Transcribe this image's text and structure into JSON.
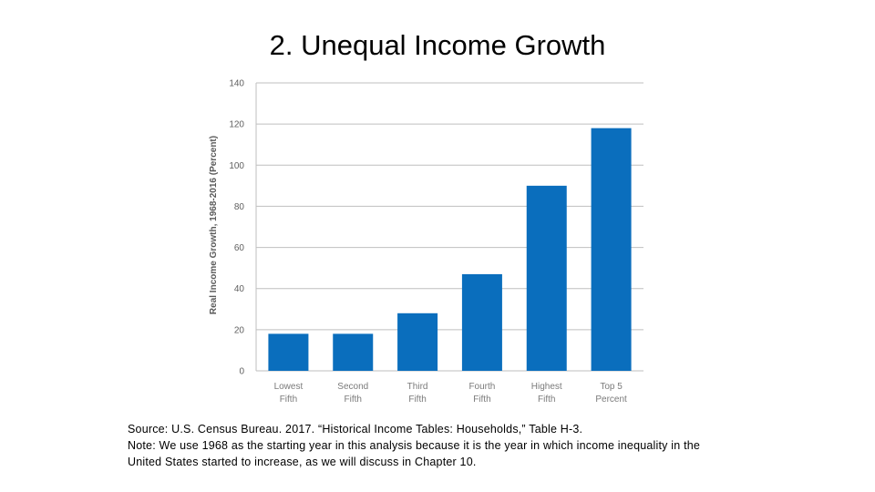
{
  "slide": {
    "title": "2. Unequal Income Growth",
    "source_line": "Source: U.S. Census Bureau. 2017. “Historical Income Tables: Households,” Table H-3.",
    "note_line1": "Note: We use 1968 as the starting year in this analysis because it is the year in which income inequality in the",
    "note_line2": "United States started to increase, as we will discuss in Chapter 10."
  },
  "chart_data": {
    "type": "bar",
    "categories": [
      [
        "Lowest",
        "Fifth"
      ],
      [
        "Second",
        "Fifth"
      ],
      [
        "Third",
        "Fifth"
      ],
      [
        "Fourth",
        "Fifth"
      ],
      [
        "Highest",
        "Fifth"
      ],
      [
        "Top 5",
        "Percent"
      ]
    ],
    "values": [
      18,
      18,
      28,
      47,
      90,
      118
    ],
    "ylabel": "Real Income Growth, 1968-2016 (Percent)",
    "xlabel": "",
    "ylim": [
      0,
      140
    ],
    "yticks": [
      0,
      20,
      40,
      60,
      80,
      100,
      120,
      140
    ],
    "grid": true,
    "bar_color": "#0a6ebd",
    "grid_color": "#bfbfbf"
  }
}
